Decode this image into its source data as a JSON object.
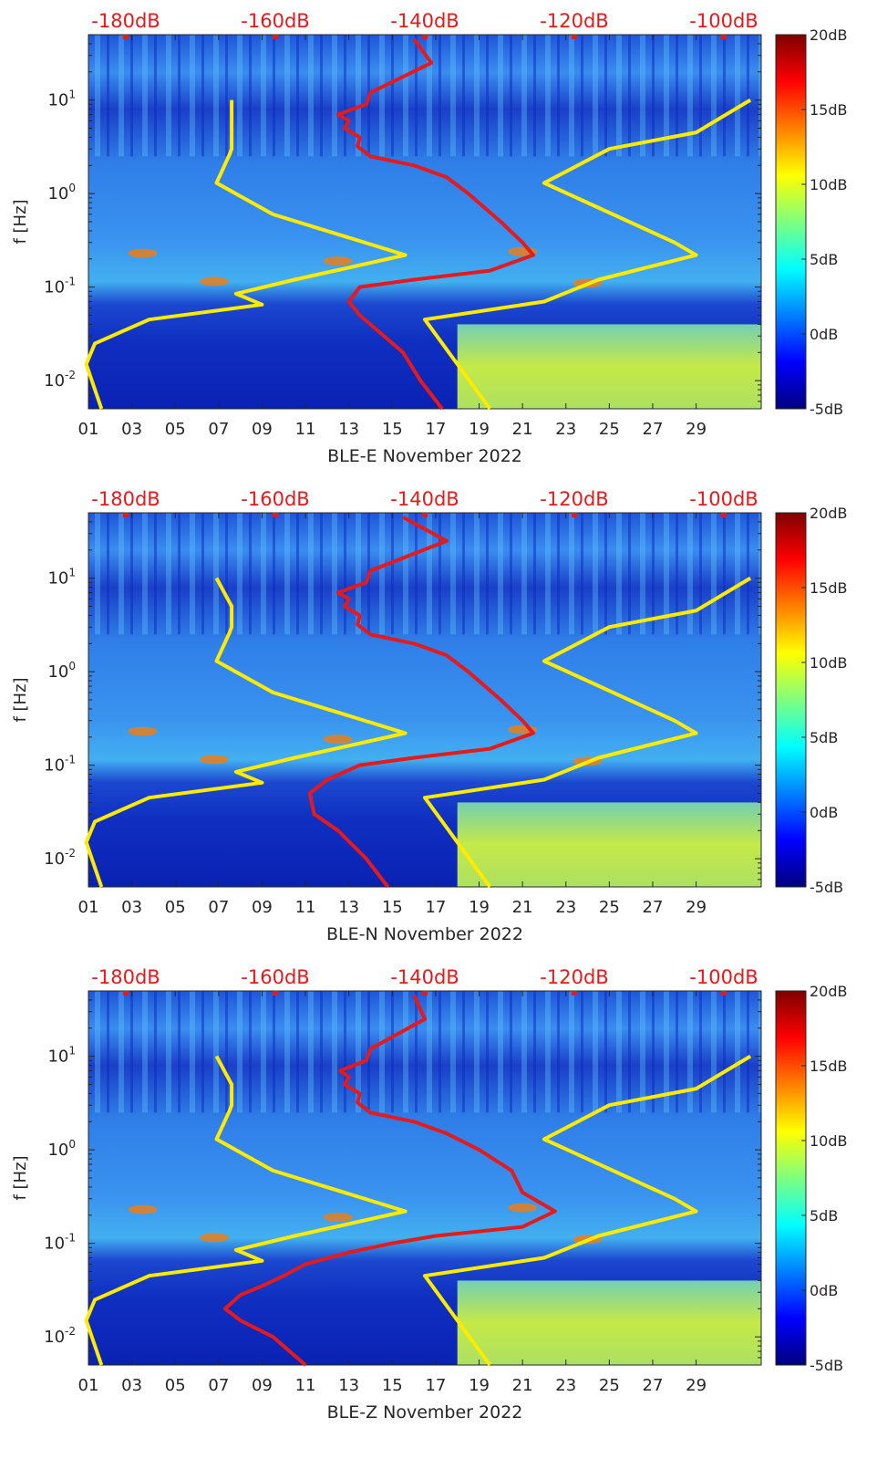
{
  "chart_data": [
    {
      "type": "heatmap",
      "title": "",
      "xlabel": "BLE-E November 2022",
      "ylabel": "f [Hz]",
      "xlim": [
        1,
        32
      ],
      "ylim": [
        0.005,
        50
      ],
      "y_scale": "log",
      "x_ticks": [
        "01",
        "03",
        "05",
        "07",
        "09",
        "11",
        "13",
        "15",
        "17",
        "19",
        "21",
        "23",
        "25",
        "27",
        "29"
      ],
      "y_ticks": [
        "10^-2",
        "10^-1",
        "10^0",
        "10^1"
      ],
      "colorbar": {
        "colormap": "jet",
        "range": [
          -5,
          20
        ],
        "ticks": [
          "20dB",
          "15dB",
          "10dB",
          "5dB",
          "0dB",
          "-5dB"
        ]
      },
      "top_axis": {
        "ticks": [
          "-180dB",
          "-160dB",
          "-140dB",
          "-120dB",
          "-100dB"
        ],
        "range": [
          -185,
          -95
        ],
        "color": "#e41a1c"
      },
      "series": [
        {
          "color": "#ffeb00",
          "points": [
            [
              10,
              7.6
            ],
            [
              5,
              7.6
            ],
            [
              3,
              7.6
            ],
            [
              2.6,
              7.5
            ],
            [
              1.3,
              6.9
            ],
            [
              0.6,
              9.5
            ],
            [
              0.22,
              15.6
            ],
            [
              0.12,
              10.5
            ],
            [
              0.085,
              7.8
            ],
            [
              0.065,
              9.0
            ],
            [
              0.045,
              3.8
            ],
            [
              0.025,
              1.3
            ],
            [
              0.015,
              0.9
            ],
            [
              0.005,
              1.6
            ]
          ]
        },
        {
          "color": "#ffeb00",
          "points": [
            [
              10,
              31.5
            ],
            [
              4.5,
              29
            ],
            [
              3,
              25
            ],
            [
              1.3,
              22
            ],
            [
              0.3,
              28
            ],
            [
              0.22,
              29
            ],
            [
              0.12,
              24.5
            ],
            [
              0.07,
              22
            ],
            [
              0.045,
              16.5
            ],
            [
              0.005,
              19.5
            ]
          ]
        },
        {
          "color": "#e41a1c",
          "points": [
            [
              45,
              16
            ],
            [
              25,
              16.8
            ],
            [
              12,
              14
            ],
            [
              9,
              13.8
            ],
            [
              7,
              12.5
            ],
            [
              6,
              13
            ],
            [
              5,
              12.8
            ],
            [
              4,
              13.5
            ],
            [
              3.2,
              13.4
            ],
            [
              2.5,
              14
            ],
            [
              2,
              16
            ],
            [
              1.5,
              17.5
            ],
            [
              1,
              18.5
            ],
            [
              0.5,
              20
            ],
            [
              0.3,
              21
            ],
            [
              0.22,
              21.5
            ],
            [
              0.15,
              19.5
            ],
            [
              0.12,
              16
            ],
            [
              0.1,
              13.5
            ],
            [
              0.07,
              13
            ],
            [
              0.05,
              13.5
            ],
            [
              0.02,
              15.5
            ],
            [
              0.01,
              16.3
            ],
            [
              0.005,
              17.3
            ]
          ]
        }
      ]
    },
    {
      "type": "heatmap",
      "title": "",
      "xlabel": "BLE-N November 2022",
      "ylabel": "f [Hz]",
      "xlim": [
        1,
        32
      ],
      "ylim": [
        0.005,
        50
      ],
      "y_scale": "log",
      "x_ticks": [
        "01",
        "03",
        "05",
        "07",
        "09",
        "11",
        "13",
        "15",
        "17",
        "19",
        "21",
        "23",
        "25",
        "27",
        "29"
      ],
      "y_ticks": [
        "10^-2",
        "10^-1",
        "10^0",
        "10^1"
      ],
      "colorbar": {
        "colormap": "jet",
        "range": [
          -5,
          20
        ],
        "ticks": [
          "20dB",
          "15dB",
          "10dB",
          "5dB",
          "0dB",
          "-5dB"
        ]
      },
      "top_axis": {
        "ticks": [
          "-180dB",
          "-160dB",
          "-140dB",
          "-120dB",
          "-100dB"
        ],
        "range": [
          -185,
          -95
        ],
        "color": "#e41a1c"
      },
      "series": [
        {
          "color": "#ffeb00",
          "points": [
            [
              10,
              6.9
            ],
            [
              5,
              7.6
            ],
            [
              3,
              7.6
            ],
            [
              2.6,
              7.5
            ],
            [
              1.3,
              6.9
            ],
            [
              0.6,
              9.5
            ],
            [
              0.22,
              15.6
            ],
            [
              0.12,
              10.5
            ],
            [
              0.085,
              7.8
            ],
            [
              0.065,
              9.0
            ],
            [
              0.045,
              3.8
            ],
            [
              0.025,
              1.3
            ],
            [
              0.015,
              0.9
            ],
            [
              0.005,
              1.6
            ]
          ]
        },
        {
          "color": "#ffeb00",
          "points": [
            [
              10,
              31.5
            ],
            [
              4.5,
              29
            ],
            [
              3,
              25
            ],
            [
              1.3,
              22
            ],
            [
              0.3,
              28
            ],
            [
              0.22,
              29
            ],
            [
              0.12,
              24.5
            ],
            [
              0.07,
              22
            ],
            [
              0.045,
              16.5
            ],
            [
              0.005,
              19.5
            ]
          ]
        },
        {
          "color": "#e41a1c",
          "points": [
            [
              45,
              15.5
            ],
            [
              25,
              17.5
            ],
            [
              12,
              14
            ],
            [
              9,
              13.8
            ],
            [
              7,
              12.5
            ],
            [
              6,
              13
            ],
            [
              5,
              12.8
            ],
            [
              4,
              13.5
            ],
            [
              3.2,
              13.4
            ],
            [
              2.5,
              14
            ],
            [
              2,
              16
            ],
            [
              1.5,
              17.5
            ],
            [
              1,
              18.5
            ],
            [
              0.5,
              20
            ],
            [
              0.3,
              21
            ],
            [
              0.22,
              21.5
            ],
            [
              0.15,
              19.5
            ],
            [
              0.12,
              16
            ],
            [
              0.1,
              13.5
            ],
            [
              0.07,
              12
            ],
            [
              0.05,
              11.2
            ],
            [
              0.03,
              11.4
            ],
            [
              0.02,
              12.5
            ],
            [
              0.01,
              13.8
            ],
            [
              0.005,
              14.8
            ]
          ]
        }
      ]
    },
    {
      "type": "heatmap",
      "title": "",
      "xlabel": "BLE-Z November 2022",
      "ylabel": "f [Hz]",
      "xlim": [
        1,
        32
      ],
      "ylim": [
        0.005,
        50
      ],
      "y_scale": "log",
      "x_ticks": [
        "01",
        "03",
        "05",
        "07",
        "09",
        "11",
        "13",
        "15",
        "17",
        "19",
        "21",
        "23",
        "25",
        "27",
        "29"
      ],
      "y_ticks": [
        "10^-2",
        "10^-1",
        "10^0",
        "10^1"
      ],
      "colorbar": {
        "colormap": "jet",
        "range": [
          -5,
          20
        ],
        "ticks": [
          "20dB",
          "15dB",
          "10dB",
          "5dB",
          "0dB",
          "-5dB"
        ]
      },
      "top_axis": {
        "ticks": [
          "-180dB",
          "-160dB",
          "-140dB",
          "-120dB",
          "-100dB"
        ],
        "range": [
          -185,
          -95
        ],
        "color": "#e41a1c"
      },
      "series": [
        {
          "color": "#ffeb00",
          "points": [
            [
              10,
              6.9
            ],
            [
              5,
              7.6
            ],
            [
              3,
              7.6
            ],
            [
              2.6,
              7.5
            ],
            [
              1.3,
              6.9
            ],
            [
              0.6,
              9.5
            ],
            [
              0.22,
              15.6
            ],
            [
              0.12,
              10.5
            ],
            [
              0.085,
              7.8
            ],
            [
              0.065,
              9.0
            ],
            [
              0.045,
              3.8
            ],
            [
              0.025,
              1.3
            ],
            [
              0.015,
              0.9
            ],
            [
              0.005,
              1.6
            ]
          ]
        },
        {
          "color": "#ffeb00",
          "points": [
            [
              10,
              31.5
            ],
            [
              4.5,
              29
            ],
            [
              3,
              25
            ],
            [
              1.3,
              22
            ],
            [
              0.3,
              28
            ],
            [
              0.22,
              29
            ],
            [
              0.12,
              24.5
            ],
            [
              0.07,
              22
            ],
            [
              0.045,
              16.5
            ],
            [
              0.005,
              19.5
            ]
          ]
        },
        {
          "color": "#e41a1c",
          "points": [
            [
              45,
              16
            ],
            [
              25,
              16.5
            ],
            [
              12,
              14
            ],
            [
              9,
              13.8
            ],
            [
              7,
              12.6
            ],
            [
              6,
              13
            ],
            [
              5,
              12.8
            ],
            [
              4,
              13.5
            ],
            [
              3.2,
              13.4
            ],
            [
              2.5,
              14
            ],
            [
              2,
              16
            ],
            [
              1.5,
              17.5
            ],
            [
              1,
              19
            ],
            [
              0.6,
              20.5
            ],
            [
              0.35,
              21
            ],
            [
              0.22,
              22.5
            ],
            [
              0.15,
              21
            ],
            [
              0.12,
              17
            ],
            [
              0.1,
              15
            ],
            [
              0.08,
              13
            ],
            [
              0.06,
              11
            ],
            [
              0.045,
              10
            ],
            [
              0.035,
              9
            ],
            [
              0.028,
              8
            ],
            [
              0.02,
              7.3
            ],
            [
              0.015,
              8
            ],
            [
              0.01,
              9.5
            ],
            [
              0.005,
              11
            ]
          ]
        }
      ]
    }
  ]
}
